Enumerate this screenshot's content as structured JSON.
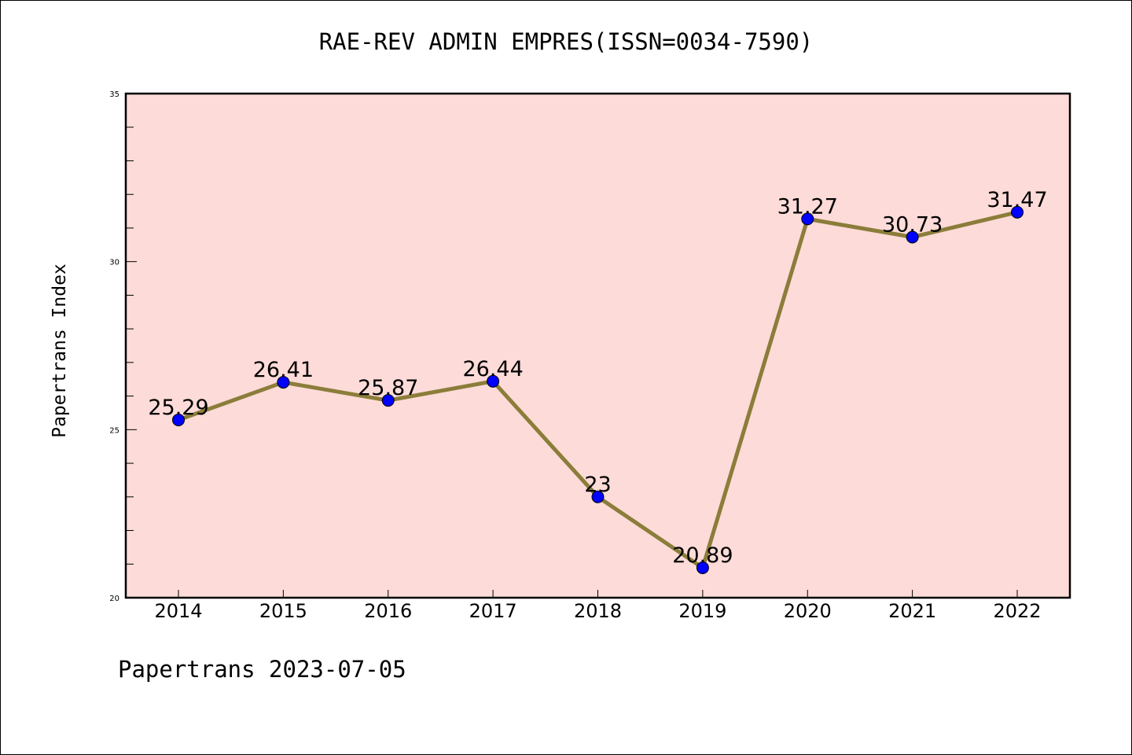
{
  "chart_data": {
    "type": "line",
    "title": "RAE-REV ADMIN EMPRES(ISSN=0034-7590)",
    "ylabel": "Papertrans Index",
    "xlabel": "",
    "x": [
      "2014",
      "2015",
      "2016",
      "2017",
      "2018",
      "2019",
      "2020",
      "2021",
      "2022"
    ],
    "series": [
      {
        "values": [
          25.29,
          26.41,
          25.87,
          26.44,
          23,
          20.89,
          31.27,
          30.73,
          31.47
        ],
        "labels": [
          "25.29",
          "26.41",
          "25.87",
          "26.44",
          "23",
          "20.89",
          "31.27",
          "30.73",
          "31.47"
        ]
      }
    ],
    "ylim": [
      20,
      35
    ],
    "yticks": [
      "20",
      "25",
      "30",
      "35"
    ],
    "grid": false,
    "colors": {
      "plot_background": "#fddbd8",
      "line": "#8b7d3a",
      "marker": "#0000ff"
    }
  },
  "footer": {
    "note": "Papertrans 2023-07-05"
  }
}
